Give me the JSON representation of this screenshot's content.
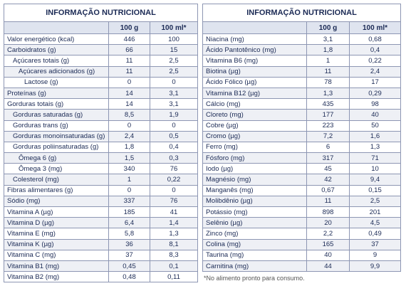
{
  "left": {
    "title": "INFORMAÇÃO NUTRICIONAL",
    "columns": [
      "100 g",
      "100 ml*"
    ],
    "rows": [
      [
        "Valor energético (kcal)",
        "446",
        "100"
      ],
      [
        "Carboidratos (g)",
        "66",
        "15"
      ],
      [
        "Açúcares totais (g)",
        "11",
        "2,5"
      ],
      [
        "Açúcares adicionados (g)",
        "11",
        "2,5"
      ],
      [
        "Lactose (g)",
        "0",
        "0"
      ],
      [
        "Proteínas (g)",
        "14",
        "3,1"
      ],
      [
        "Gorduras totais (g)",
        "14",
        "3,1"
      ],
      [
        "Gorduras saturadas (g)",
        "8,5",
        "1,9"
      ],
      [
        "Gorduras trans (g)",
        "0",
        "0"
      ],
      [
        "Gorduras monoinsaturadas (g)",
        "2,4",
        "0,5"
      ],
      [
        "Gorduras poliinsaturadas (g)",
        "1,8",
        "0,4"
      ],
      [
        "Ômega 6 (g)",
        "1,5",
        "0,3"
      ],
      [
        "Ômega 3 (mg)",
        "340",
        "76"
      ],
      [
        "Colesterol (mg)",
        "1",
        "0,22"
      ],
      [
        "Fibras alimentares (g)",
        "0",
        "0"
      ],
      [
        "Sódio (mg)",
        "337",
        "76"
      ],
      [
        "Vitamina A (µg)",
        "185",
        "41"
      ],
      [
        "Vitamina D (µg)",
        "6,4",
        "1,4"
      ],
      [
        "Vitamina E (mg)",
        "5,8",
        "1,3"
      ],
      [
        "Vitamina K (µg)",
        "36",
        "8,1"
      ],
      [
        "Vitamina C (mg)",
        "37",
        "8,3"
      ],
      [
        "Vitamina B1 (mg)",
        "0,45",
        "0,1"
      ],
      [
        "Vitamina B2 (mg)",
        "0,48",
        "0,11"
      ]
    ]
  },
  "right": {
    "title": "INFORMAÇÃO NUTRICIONAL",
    "columns": [
      "100 g",
      "100 ml*"
    ],
    "rows": [
      [
        "Niacina (mg)",
        "3,1",
        "0,68"
      ],
      [
        "Ácido Pantotênico (mg)",
        "1,8",
        "0,4"
      ],
      [
        "Vitamina B6 (mg)",
        "1",
        "0,22"
      ],
      [
        "Biotina (µg)",
        "11",
        "2,4"
      ],
      [
        "Ácido Fólico (µg)",
        "78",
        "17"
      ],
      [
        "Vitamina B12 (µg)",
        "1,3",
        "0,29"
      ],
      [
        "Cálcio (mg)",
        "435",
        "98"
      ],
      [
        "Cloreto (mg)",
        "177",
        "40"
      ],
      [
        "Cobre (µg)",
        "223",
        "50"
      ],
      [
        "Cromo (µg)",
        "7,2",
        "1,6"
      ],
      [
        "Ferro (mg)",
        "6",
        "1,3"
      ],
      [
        "Fósforo (mg)",
        "317",
        "71"
      ],
      [
        "Iodo (µg)",
        "45",
        "10"
      ],
      [
        "Magnésio (mg)",
        "42",
        "9,4"
      ],
      [
        "Manganês (mg)",
        "0,67",
        "0,15"
      ],
      [
        "Molibdênio (µg)",
        "11",
        "2,5"
      ],
      [
        "Potássio (mg)",
        "898",
        "201"
      ],
      [
        "Selênio (µg)",
        "20",
        "4,5"
      ],
      [
        "Zinco (mg)",
        "2,2",
        "0,49"
      ],
      [
        "Colina (mg)",
        "165",
        "37"
      ],
      [
        "Taurina (mg)",
        "40",
        "9"
      ],
      [
        "Carnitina (mg)",
        "44",
        "9,9"
      ]
    ]
  },
  "footnote": "*No alimento pronto para consumo."
}
